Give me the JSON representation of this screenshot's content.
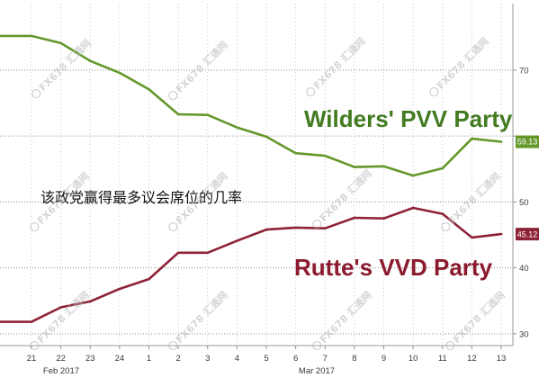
{
  "chart_data": {
    "type": "line",
    "categories": [
      "21",
      "22",
      "23",
      "24",
      "1",
      "2",
      "3",
      "4",
      "5",
      "6",
      "7",
      "8",
      "9",
      "10",
      "11",
      "12",
      "13"
    ],
    "months": [
      "Feb 2017",
      "Mar 2017"
    ],
    "annotation": "该政党赢得最多议会席位的几率",
    "ylim": [
      28.2,
      80.1
    ],
    "yticks": [
      {
        "value": 30,
        "label": "30"
      },
      {
        "value": 40,
        "label": "40"
      },
      {
        "value": 50,
        "label": "50"
      },
      {
        "value": 60,
        "label": ""
      },
      {
        "value": 70,
        "label": "70"
      }
    ],
    "grid": true,
    "series": [
      {
        "name": "Wilders' PVV Party",
        "color": "#64982b",
        "label_color": "#437b20",
        "values": [
          75.2,
          74.1,
          71.4,
          69.6,
          67.1,
          63.3,
          63.2,
          61.3,
          59.9,
          57.4,
          57.0,
          55.3,
          55.4,
          54.0,
          55.1,
          59.6,
          59.13
        ],
        "end_label": "59.13"
      },
      {
        "name": "Rutte's VVD Party",
        "color": "#8e2338",
        "label_color": "#8b1a2e",
        "values": [
          31.8,
          34.0,
          34.9,
          36.8,
          38.3,
          42.3,
          42.3,
          44.1,
          45.8,
          46.1,
          46.0,
          47.6,
          47.5,
          49.1,
          48.2,
          44.6,
          45.12
        ],
        "end_label": "45.12"
      }
    ]
  },
  "watermark": "FX678 汇通网"
}
